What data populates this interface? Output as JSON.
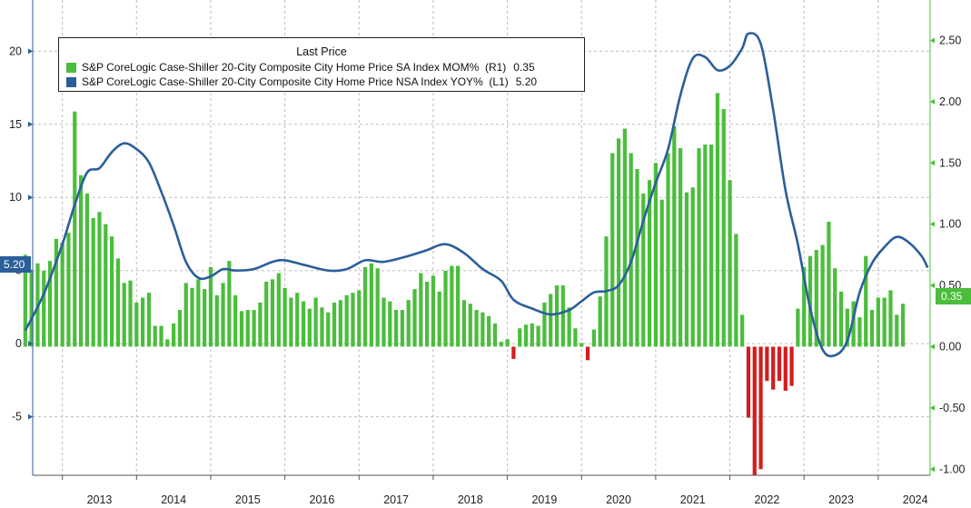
{
  "chart_data": {
    "type": "bar+line",
    "title": "",
    "legend": {
      "title": "Last Price",
      "placement": "top-left",
      "entries": [
        {
          "label": "S&P CoreLogic Case-Shiller 20-City Composite City Home Price SA Index MOM%",
          "axis": "(R1)",
          "value": "0.35",
          "color": "#4bbd3c"
        },
        {
          "label": "S&P CoreLogic Case-Shiller 20-City Composite City Home Price NSA Index YOY%",
          "axis": "(L1)",
          "value": "5.20",
          "color": "#2b5f9a"
        }
      ]
    },
    "left_axis": {
      "range": [
        -9,
        23.5
      ],
      "ticks": [
        -5,
        0,
        5,
        10,
        15,
        20
      ],
      "tick_labels": [
        "-5",
        "0",
        "5",
        "10",
        "15",
        "20"
      ]
    },
    "right_axis": {
      "range": [
        -1.05,
        2.83
      ],
      "ticks": [
        -1.0,
        -0.5,
        0.0,
        0.5,
        1.0,
        1.5,
        2.0,
        2.5
      ],
      "tick_labels": [
        "-1.00",
        "-0.50",
        "0.00",
        "0.50",
        "1.00",
        "1.50",
        "2.00",
        "2.50"
      ]
    },
    "x_axis": {
      "start": 2012.6,
      "end": 2024.7,
      "year_labels": [
        "2013",
        "2014",
        "2015",
        "2016",
        "2017",
        "2018",
        "2019",
        "2020",
        "2021",
        "2022",
        "2023",
        "2024"
      ]
    },
    "grid": true,
    "last_value_tags": {
      "left": "5.20",
      "right": "0.35"
    },
    "bars": {
      "name": "S&P CoreLogic Case-Shiller 20-City Composite City Home Price SA Index MOM%",
      "axis": "right",
      "start": "2012-07",
      "values": [
        0.75,
        0.62,
        0.68,
        0.62,
        0.7,
        0.88,
        0.85,
        0.93,
        1.92,
        1.4,
        1.25,
        1.05,
        1.1,
        1.0,
        0.9,
        0.72,
        0.52,
        0.54,
        0.36,
        0.4,
        0.44,
        0.17,
        0.17,
        0.06,
        0.19,
        0.3,
        0.52,
        0.48,
        0.55,
        0.47,
        0.65,
        0.42,
        0.52,
        0.7,
        0.42,
        0.29,
        0.3,
        0.3,
        0.36,
        0.53,
        0.55,
        0.6,
        0.48,
        0.4,
        0.44,
        0.37,
        0.31,
        0.4,
        0.32,
        0.28,
        0.36,
        0.38,
        0.42,
        0.44,
        0.46,
        0.65,
        0.68,
        0.64,
        0.4,
        0.37,
        0.3,
        0.3,
        0.38,
        0.47,
        0.6,
        0.53,
        0.58,
        0.45,
        0.62,
        0.66,
        0.66,
        0.38,
        0.35,
        0.3,
        0.28,
        0.25,
        0.19,
        0.04,
        0.06,
        -0.1,
        0.15,
        0.18,
        0.19,
        0.17,
        0.36,
        0.43,
        0.5,
        0.5,
        0.32,
        0.15,
        0.03,
        -0.11,
        0.14,
        0.41,
        0.9,
        1.58,
        1.7,
        1.78,
        1.58,
        1.45,
        1.25,
        1.36,
        1.5,
        1.2,
        1.58,
        1.8,
        1.62,
        1.26,
        1.3,
        1.62,
        1.65,
        1.65,
        2.07,
        1.94,
        1.36,
        0.92,
        0.26,
        -0.58,
        -1.05,
        -1.0,
        -0.28,
        -0.35,
        -0.28,
        -0.36,
        -0.32,
        0.31,
        0.65,
        0.74,
        0.79,
        0.83,
        1.02,
        0.64,
        0.45,
        0.31,
        0.37,
        0.24,
        0.74,
        0.3,
        0.4,
        0.4,
        0.46,
        0.26,
        0.35
      ]
    },
    "line": {
      "name": "S&P CoreLogic Case-Shiller 20-City Composite City Home Price NSA Index YOY%",
      "axis": "left",
      "points": [
        [
          "2012-07",
          0.9
        ],
        [
          "2012-10",
          3.4
        ],
        [
          "2013-01",
          6.8
        ],
        [
          "2013-03",
          9.5
        ],
        [
          "2013-05",
          11.7
        ],
        [
          "2013-07",
          12.0
        ],
        [
          "2013-09",
          13.1
        ],
        [
          "2013-11",
          13.7
        ],
        [
          "2014-01",
          13.3
        ],
        [
          "2014-03",
          12.4
        ],
        [
          "2014-05",
          10.4
        ],
        [
          "2014-07",
          8.1
        ],
        [
          "2014-09",
          5.6
        ],
        [
          "2014-11",
          4.5
        ],
        [
          "2015-01",
          4.6
        ],
        [
          "2015-03",
          5.1
        ],
        [
          "2015-05",
          5.0
        ],
        [
          "2015-08",
          5.1
        ],
        [
          "2015-11",
          5.6
        ],
        [
          "2016-01",
          5.7
        ],
        [
          "2016-04",
          5.4
        ],
        [
          "2016-08",
          5.0
        ],
        [
          "2016-11",
          5.1
        ],
        [
          "2017-02",
          5.7
        ],
        [
          "2017-05",
          5.6
        ],
        [
          "2017-09",
          6.0
        ],
        [
          "2017-12",
          6.4
        ],
        [
          "2018-03",
          6.8
        ],
        [
          "2018-06",
          6.2
        ],
        [
          "2018-09",
          5.1
        ],
        [
          "2018-12",
          4.3
        ],
        [
          "2019-02",
          3.0
        ],
        [
          "2019-05",
          2.4
        ],
        [
          "2019-08",
          2.0
        ],
        [
          "2019-11",
          2.3
        ],
        [
          "2020-01",
          2.9
        ],
        [
          "2020-03",
          3.5
        ],
        [
          "2020-05",
          3.6
        ],
        [
          "2020-07",
          4.0
        ],
        [
          "2020-09",
          5.6
        ],
        [
          "2020-11",
          8.4
        ],
        [
          "2021-01",
          11.0
        ],
        [
          "2021-03",
          13.3
        ],
        [
          "2021-05",
          17.0
        ],
        [
          "2021-07",
          19.5
        ],
        [
          "2021-09",
          19.6
        ],
        [
          "2021-11",
          18.7
        ],
        [
          "2022-01",
          19.0
        ],
        [
          "2022-03",
          20.2
        ],
        [
          "2022-04",
          21.2
        ],
        [
          "2022-06",
          20.5
        ],
        [
          "2022-08",
          16.0
        ],
        [
          "2022-10",
          10.5
        ],
        [
          "2022-12",
          6.8
        ],
        [
          "2023-02",
          2.4
        ],
        [
          "2023-04",
          -0.4
        ],
        [
          "2023-06",
          -0.8
        ],
        [
          "2023-08",
          0.2
        ],
        [
          "2023-10",
          3.5
        ],
        [
          "2023-12",
          5.5
        ],
        [
          "2024-02",
          6.6
        ],
        [
          "2024-04",
          7.3
        ],
        [
          "2024-06",
          6.9
        ],
        [
          "2024-08",
          6.0
        ],
        [
          "2024-09",
          5.2
        ]
      ]
    }
  }
}
